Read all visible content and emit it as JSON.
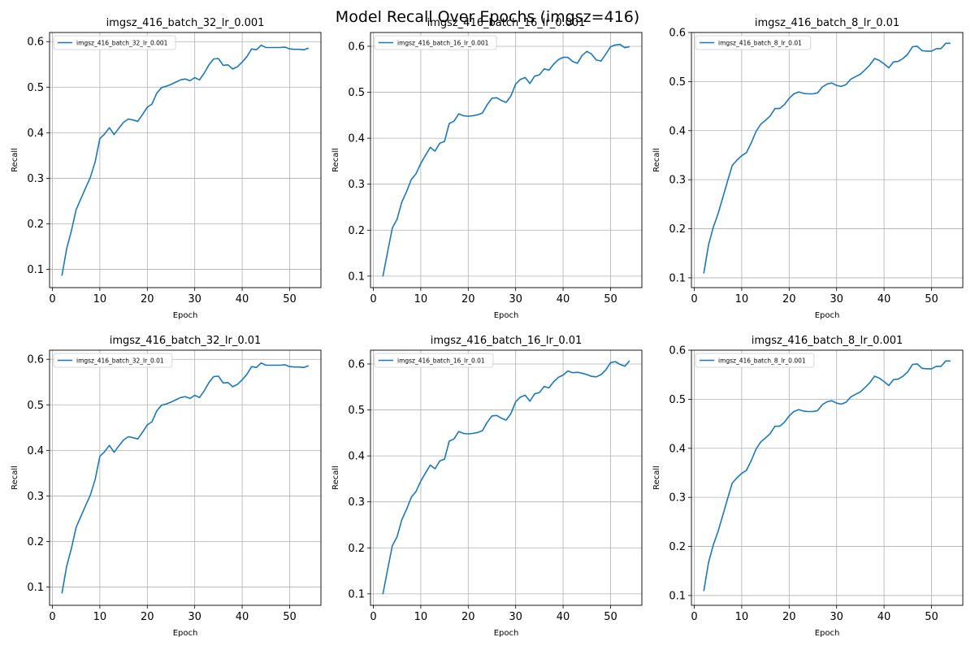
{
  "figure": {
    "suptitle": "Model Recall Over Epochs (imgsz=416)",
    "colors": {
      "line": "#1f77b4",
      "grid": "#b0b0b0",
      "axes": "#000000",
      "legend_border": "#cccccc"
    }
  },
  "chart_data": [
    {
      "type": "line",
      "title": "imgsz_416_batch_32_lr_0.001",
      "xlabel": "Epoch",
      "ylabel": "Recall",
      "xlim": [
        -0.6,
        56.6
      ],
      "ylim": [
        0.06,
        0.62
      ],
      "xticks": [
        0,
        10,
        20,
        30,
        40,
        50
      ],
      "yticks": [
        0.1,
        0.2,
        0.3,
        0.4,
        0.5,
        0.6
      ],
      "grid": true,
      "legend": "upper left",
      "series": [
        {
          "name": "imgsz_416_batch_32_lr_0.001",
          "x": [
            2,
            3,
            4,
            5,
            6,
            7,
            8,
            9,
            10,
            11,
            12,
            13,
            14,
            15,
            16,
            17,
            18,
            19,
            20,
            21,
            22,
            23,
            24,
            25,
            26,
            27,
            28,
            29,
            30,
            31,
            32,
            33,
            34,
            35,
            36,
            37,
            38,
            39,
            40,
            41,
            42,
            43,
            44,
            45,
            46,
            47,
            48,
            49,
            50,
            51,
            52,
            53,
            54
          ],
          "y": [
            0.086,
            0.145,
            0.185,
            0.231,
            0.255,
            0.279,
            0.302,
            0.336,
            0.387,
            0.397,
            0.411,
            0.396,
            0.41,
            0.423,
            0.43,
            0.428,
            0.425,
            0.44,
            0.456,
            0.463,
            0.487,
            0.499,
            0.502,
            0.506,
            0.511,
            0.516,
            0.518,
            0.514,
            0.521,
            0.516,
            0.531,
            0.549,
            0.562,
            0.563,
            0.548,
            0.549,
            0.54,
            0.545,
            0.555,
            0.567,
            0.584,
            0.582,
            0.592,
            0.587,
            0.587,
            0.587,
            0.587,
            0.588,
            0.584,
            0.583,
            0.583,
            0.582,
            0.586
          ]
        }
      ]
    },
    {
      "type": "line",
      "title": "imgsz_416_batch_16_lr_0.001",
      "xlabel": "Epoch",
      "ylabel": "Recall",
      "xlim": [
        -0.6,
        56.6
      ],
      "ylim": [
        0.075,
        0.63
      ],
      "xticks": [
        0,
        10,
        20,
        30,
        40,
        50
      ],
      "yticks": [
        0.1,
        0.2,
        0.3,
        0.4,
        0.5,
        0.6
      ],
      "grid": true,
      "legend": "upper left",
      "series": [
        {
          "name": "imgsz_416_batch_16_lr_0.001",
          "x": [
            2,
            3,
            4,
            5,
            6,
            7,
            8,
            9,
            10,
            11,
            12,
            13,
            14,
            15,
            16,
            17,
            18,
            19,
            20,
            21,
            22,
            23,
            24,
            25,
            26,
            27,
            28,
            29,
            30,
            31,
            32,
            33,
            34,
            35,
            36,
            37,
            38,
            39,
            40,
            41,
            42,
            43,
            44,
            45,
            46,
            47,
            48,
            49,
            50,
            51,
            52,
            53,
            54
          ],
          "y": [
            0.099,
            0.152,
            0.205,
            0.224,
            0.261,
            0.284,
            0.31,
            0.323,
            0.345,
            0.363,
            0.38,
            0.372,
            0.389,
            0.393,
            0.432,
            0.437,
            0.453,
            0.449,
            0.448,
            0.449,
            0.451,
            0.455,
            0.473,
            0.487,
            0.488,
            0.482,
            0.478,
            0.492,
            0.518,
            0.528,
            0.532,
            0.519,
            0.535,
            0.538,
            0.551,
            0.548,
            0.561,
            0.571,
            0.576,
            0.576,
            0.567,
            0.563,
            0.58,
            0.589,
            0.583,
            0.57,
            0.568,
            0.583,
            0.599,
            0.603,
            0.604,
            0.597,
            0.599
          ]
        }
      ]
    },
    {
      "type": "line",
      "title": "imgsz_416_batch_8_lr_0.01",
      "xlabel": "Epoch",
      "ylabel": "Recall",
      "xlim": [
        -0.6,
        56.6
      ],
      "ylim": [
        0.08,
        0.6
      ],
      "xticks": [
        0,
        10,
        20,
        30,
        40,
        50
      ],
      "yticks": [
        0.1,
        0.2,
        0.3,
        0.4,
        0.5,
        0.6
      ],
      "grid": true,
      "legend": "upper left",
      "series": [
        {
          "name": "imgsz_416_batch_8_lr_0.01",
          "x": [
            2,
            3,
            4,
            5,
            6,
            7,
            8,
            9,
            10,
            11,
            12,
            13,
            14,
            15,
            16,
            17,
            18,
            19,
            20,
            21,
            22,
            23,
            24,
            25,
            26,
            27,
            28,
            29,
            30,
            31,
            32,
            33,
            34,
            35,
            36,
            37,
            38,
            39,
            40,
            41,
            42,
            43,
            44,
            45,
            46,
            47,
            48,
            49,
            50,
            51,
            52,
            53,
            54
          ],
          "y": [
            0.109,
            0.167,
            0.203,
            0.23,
            0.263,
            0.297,
            0.329,
            0.34,
            0.349,
            0.355,
            0.375,
            0.398,
            0.413,
            0.421,
            0.43,
            0.445,
            0.445,
            0.453,
            0.466,
            0.475,
            0.479,
            0.476,
            0.475,
            0.475,
            0.477,
            0.489,
            0.495,
            0.497,
            0.492,
            0.49,
            0.494,
            0.505,
            0.51,
            0.515,
            0.524,
            0.534,
            0.547,
            0.543,
            0.536,
            0.528,
            0.54,
            0.541,
            0.547,
            0.556,
            0.571,
            0.572,
            0.563,
            0.562,
            0.562,
            0.567,
            0.567,
            0.578,
            0.578
          ]
        }
      ]
    },
    {
      "type": "line",
      "title": "imgsz_416_batch_32_lr_0.01",
      "xlabel": "Epoch",
      "ylabel": "Recall",
      "xlim": [
        -0.6,
        56.6
      ],
      "ylim": [
        0.06,
        0.62
      ],
      "xticks": [
        0,
        10,
        20,
        30,
        40,
        50
      ],
      "yticks": [
        0.1,
        0.2,
        0.3,
        0.4,
        0.5,
        0.6
      ],
      "grid": true,
      "legend": "upper left",
      "series": [
        {
          "name": "imgsz_416_batch_32_lr_0.01",
          "x": [
            2,
            3,
            4,
            5,
            6,
            7,
            8,
            9,
            10,
            11,
            12,
            13,
            14,
            15,
            16,
            17,
            18,
            19,
            20,
            21,
            22,
            23,
            24,
            25,
            26,
            27,
            28,
            29,
            30,
            31,
            32,
            33,
            34,
            35,
            36,
            37,
            38,
            39,
            40,
            41,
            42,
            43,
            44,
            45,
            46,
            47,
            48,
            49,
            50,
            51,
            52,
            53,
            54
          ],
          "y": [
            0.086,
            0.145,
            0.185,
            0.231,
            0.255,
            0.279,
            0.302,
            0.336,
            0.387,
            0.397,
            0.411,
            0.396,
            0.41,
            0.423,
            0.43,
            0.428,
            0.425,
            0.44,
            0.456,
            0.463,
            0.487,
            0.499,
            0.502,
            0.506,
            0.511,
            0.516,
            0.518,
            0.514,
            0.521,
            0.516,
            0.531,
            0.549,
            0.562,
            0.563,
            0.548,
            0.549,
            0.54,
            0.545,
            0.555,
            0.567,
            0.584,
            0.582,
            0.592,
            0.587,
            0.587,
            0.587,
            0.587,
            0.588,
            0.584,
            0.583,
            0.583,
            0.582,
            0.586
          ]
        }
      ]
    },
    {
      "type": "line",
      "title": "imgsz_416_batch_16_lr_0.01",
      "xlabel": "Epoch",
      "ylabel": "Recall",
      "xlim": [
        -0.6,
        56.6
      ],
      "ylim": [
        0.075,
        0.63
      ],
      "xticks": [
        0,
        10,
        20,
        30,
        40,
        50
      ],
      "yticks": [
        0.1,
        0.2,
        0.3,
        0.4,
        0.5,
        0.6
      ],
      "grid": true,
      "legend": "upper left",
      "series": [
        {
          "name": "imgsz_416_batch_16_lr_0.01",
          "x": [
            2,
            3,
            4,
            5,
            6,
            7,
            8,
            9,
            10,
            11,
            12,
            13,
            14,
            15,
            16,
            17,
            18,
            19,
            20,
            21,
            22,
            23,
            24,
            25,
            26,
            27,
            28,
            29,
            30,
            31,
            32,
            33,
            34,
            35,
            36,
            37,
            38,
            39,
            40,
            41,
            42,
            43,
            44,
            45,
            46,
            47,
            48,
            49,
            50,
            51,
            52,
            53,
            54
          ],
          "y": [
            0.099,
            0.152,
            0.205,
            0.224,
            0.261,
            0.284,
            0.31,
            0.323,
            0.345,
            0.363,
            0.38,
            0.372,
            0.389,
            0.393,
            0.432,
            0.437,
            0.453,
            0.449,
            0.448,
            0.449,
            0.451,
            0.455,
            0.473,
            0.487,
            0.488,
            0.482,
            0.478,
            0.492,
            0.518,
            0.528,
            0.532,
            0.519,
            0.535,
            0.538,
            0.551,
            0.548,
            0.561,
            0.571,
            0.576,
            0.585,
            0.581,
            0.582,
            0.58,
            0.577,
            0.573,
            0.572,
            0.577,
            0.587,
            0.603,
            0.605,
            0.599,
            0.595,
            0.607
          ]
        }
      ]
    },
    {
      "type": "line",
      "title": "imgsz_416_batch_8_lr_0.001",
      "xlabel": "Epoch",
      "ylabel": "Recall",
      "xlim": [
        -0.6,
        56.6
      ],
      "ylim": [
        0.08,
        0.6
      ],
      "xticks": [
        0,
        10,
        20,
        30,
        40,
        50
      ],
      "yticks": [
        0.1,
        0.2,
        0.3,
        0.4,
        0.5,
        0.6
      ],
      "grid": true,
      "legend": "upper left",
      "series": [
        {
          "name": "imgsz_416_batch_8_lr_0.001",
          "x": [
            2,
            3,
            4,
            5,
            6,
            7,
            8,
            9,
            10,
            11,
            12,
            13,
            14,
            15,
            16,
            17,
            18,
            19,
            20,
            21,
            22,
            23,
            24,
            25,
            26,
            27,
            28,
            29,
            30,
            31,
            32,
            33,
            34,
            35,
            36,
            37,
            38,
            39,
            40,
            41,
            42,
            43,
            44,
            45,
            46,
            47,
            48,
            49,
            50,
            51,
            52,
            53,
            54
          ],
          "y": [
            0.109,
            0.167,
            0.203,
            0.23,
            0.263,
            0.297,
            0.329,
            0.34,
            0.349,
            0.355,
            0.375,
            0.398,
            0.413,
            0.421,
            0.43,
            0.445,
            0.445,
            0.453,
            0.466,
            0.475,
            0.479,
            0.476,
            0.475,
            0.475,
            0.477,
            0.489,
            0.495,
            0.497,
            0.492,
            0.49,
            0.494,
            0.505,
            0.51,
            0.515,
            0.524,
            0.534,
            0.547,
            0.543,
            0.536,
            0.528,
            0.54,
            0.541,
            0.547,
            0.556,
            0.571,
            0.572,
            0.563,
            0.562,
            0.562,
            0.567,
            0.567,
            0.578,
            0.578
          ]
        }
      ]
    }
  ]
}
